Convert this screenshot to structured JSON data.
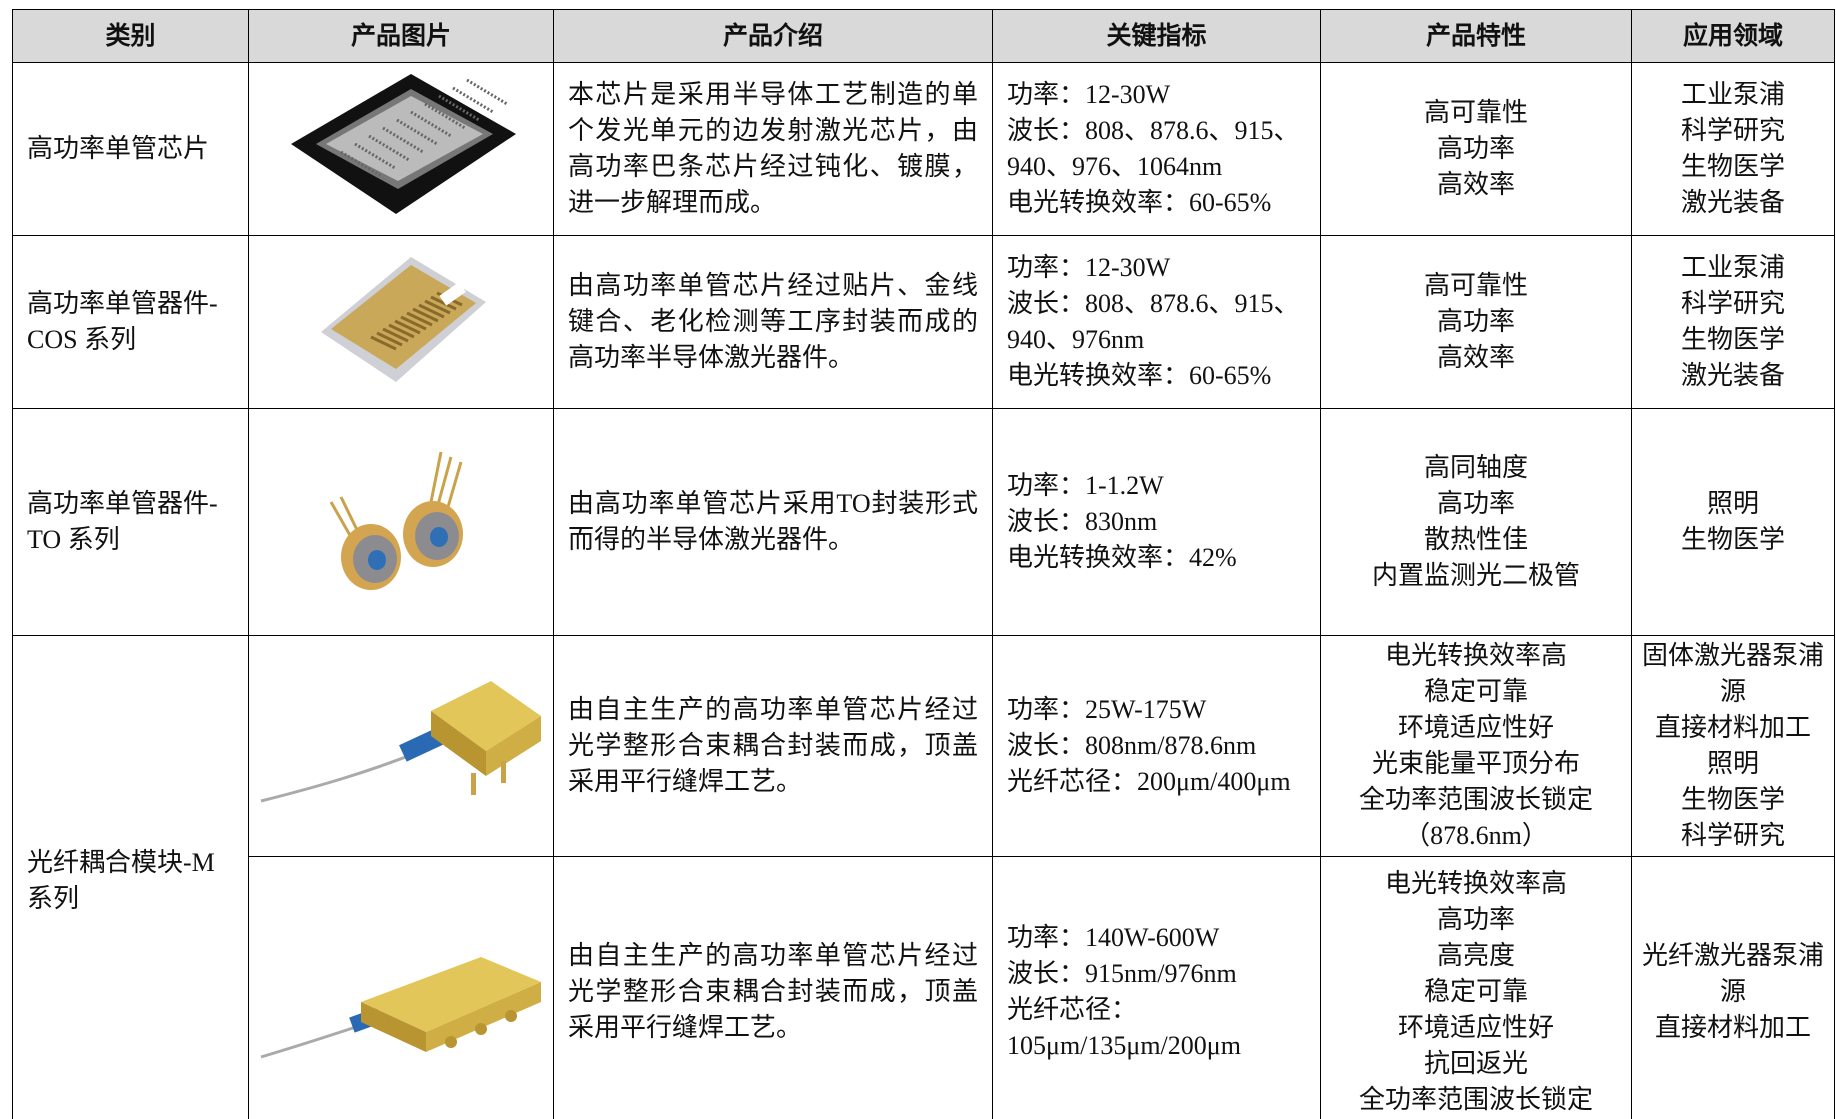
{
  "table": {
    "headers": [
      "类别",
      "产品图片",
      "产品介绍",
      "关键指标",
      "产品特性",
      "应用领域"
    ],
    "rows": [
      {
        "category": "高功率单管芯片",
        "intro": "本芯片是采用半导体工艺制造的单个发光单元的边发射激光芯片，由高功率巴条芯片经过钝化、镀膜，进一步解理而成。",
        "indicators": [
          "功率：12-30W",
          "波长：808、878.6、915、940、976、1064nm",
          "电光转换效率：60-65%"
        ],
        "features": [
          "高可靠性",
          "高功率",
          "高效率"
        ],
        "applications": [
          "工业泵浦",
          "科学研究",
          "生物医学",
          "激光装备"
        ]
      },
      {
        "category": "高功率单管器件-COS 系列",
        "intro": "由高功率单管芯片经过贴片、金线键合、老化检测等工序封装而成的高功率半导体激光器件。",
        "indicators": [
          "功率：12-30W",
          "波长：808、878.6、915、940、976nm",
          "电光转换效率：60-65%"
        ],
        "features": [
          "高可靠性",
          "高功率",
          "高效率"
        ],
        "applications": [
          "工业泵浦",
          "科学研究",
          "生物医学",
          "激光装备"
        ]
      },
      {
        "category": "高功率单管器件-TO 系列",
        "intro": "由高功率单管芯片采用TO封装形式而得的半导体激光器件。",
        "indicators": [
          "功率：1-1.2W",
          "波长：830nm",
          "电光转换效率：42%"
        ],
        "features": [
          "高同轴度",
          "高功率",
          "散热性佳",
          "内置监测光二极管"
        ],
        "applications": [
          "照明",
          "生物医学"
        ]
      },
      {
        "category": "光纤耦合模块-M 系列",
        "intro": "由自主生产的高功率单管芯片经过光学整形合束耦合封装而成，顶盖采用平行缝焊工艺。",
        "indicators": [
          "功率：25W-175W",
          "波长：808nm/878.6nm",
          "光纤芯径：200μm/400μm"
        ],
        "features": [
          "电光转换效率高",
          "稳定可靠",
          "环境适应性好",
          "光束能量平顶分布",
          "全功率范围波长锁定（878.6nm）"
        ],
        "applications": [
          "固体激光器泵浦源",
          "直接材料加工",
          "照明",
          "生物医学",
          "科学研究"
        ]
      },
      {
        "intro": "由自主生产的高功率单管芯片经过光学整形合束耦合封装而成，顶盖采用平行缝焊工艺。",
        "indicators": [
          "功率：140W-600W",
          "波长：915nm/976nm",
          "光纤芯径：105μm/135μm/200μm"
        ],
        "features": [
          "电光转换效率高",
          "高功率",
          "高亮度",
          "稳定可靠",
          "环境适应性好",
          "抗回返光",
          "全功率范围波长锁定"
        ],
        "applications": [
          "光纤激光器泵浦源",
          "直接材料加工"
        ]
      }
    ]
  }
}
